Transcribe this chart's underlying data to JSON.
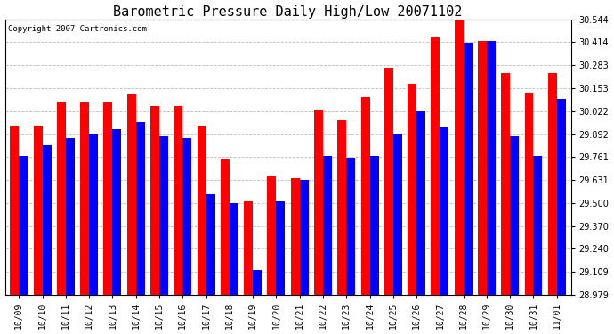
{
  "title": "Barometric Pressure Daily High/Low 20071102",
  "copyright": "Copyright 2007 Cartronics.com",
  "categories": [
    "10/09",
    "10/10",
    "10/11",
    "10/12",
    "10/13",
    "10/14",
    "10/15",
    "10/16",
    "10/17",
    "10/18",
    "10/19",
    "10/20",
    "10/21",
    "10/22",
    "10/23",
    "10/24",
    "10/25",
    "10/26",
    "10/27",
    "10/28",
    "10/29",
    "10/30",
    "10/31",
    "11/01"
  ],
  "highs": [
    29.94,
    29.94,
    30.07,
    30.07,
    30.07,
    30.12,
    30.05,
    30.05,
    29.94,
    29.75,
    29.51,
    29.65,
    29.64,
    30.03,
    29.97,
    30.1,
    30.27,
    30.18,
    30.44,
    30.54,
    30.42,
    30.24,
    30.13,
    30.24
  ],
  "lows": [
    29.77,
    29.83,
    29.87,
    29.89,
    29.92,
    29.96,
    29.88,
    29.87,
    29.55,
    29.5,
    29.12,
    29.51,
    29.63,
    29.77,
    29.76,
    29.77,
    29.89,
    30.02,
    29.93,
    30.41,
    30.42,
    29.88,
    29.77,
    30.09
  ],
  "ylim_min": 28.979,
  "ylim_max": 30.544,
  "yticks": [
    28.979,
    29.109,
    29.24,
    29.37,
    29.5,
    29.631,
    29.761,
    29.892,
    30.022,
    30.153,
    30.283,
    30.414,
    30.544
  ],
  "bar_width": 0.38,
  "high_color": "#ff0000",
  "low_color": "#0000ff",
  "bg_color": "#ffffff",
  "grid_color": "#bbbbbb",
  "title_fontsize": 11,
  "tick_fontsize": 7,
  "copyright_fontsize": 6.5
}
